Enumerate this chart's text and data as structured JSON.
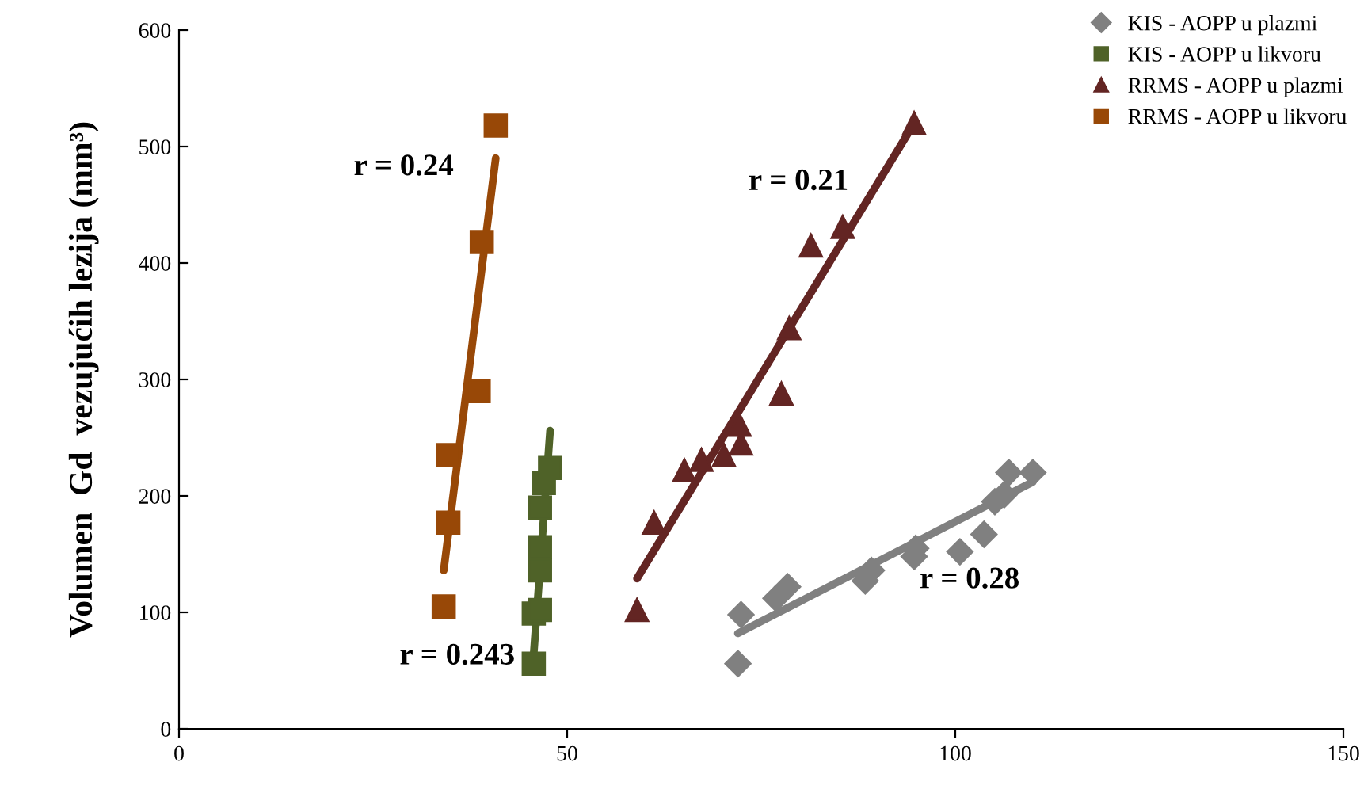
{
  "chart_data": {
    "type": "scatter",
    "ylabel": "Volumen  Gd  vezujućih lezija (mm³)",
    "xlim": [
      0,
      150
    ],
    "ylim": [
      0,
      600
    ],
    "xticks": [
      0,
      50,
      100,
      150
    ],
    "yticks": [
      0,
      100,
      200,
      300,
      400,
      500,
      600
    ],
    "grid": false,
    "legend": "top right",
    "series": [
      {
        "name": "KIS - AOPP u plazmi",
        "color": "#808080",
        "marker": "diamond",
        "x": [
          72.0,
          72.4,
          76.9,
          78.4,
          88.4,
          89.2,
          94.7,
          94.9,
          100.6,
          103.7,
          105.1,
          106.3,
          106.9,
          110
        ],
        "values": [
          56,
          98,
          112,
          122,
          127,
          136,
          148,
          155,
          152,
          167,
          195,
          201,
          220,
          220
        ]
      },
      {
        "name": "KIS - AOPP u likvoru",
        "color": "#4f6228",
        "marker": "square",
        "x": [
          45.7,
          45.7,
          46.5,
          46.5,
          46.5,
          46.5,
          47.0,
          47.8
        ],
        "values": [
          56,
          99,
          102,
          136,
          156,
          190,
          211,
          224
        ]
      },
      {
        "name": "RRMS - AOPP u plazmi",
        "color": "#632523",
        "marker": "triangle",
        "x": [
          59.0,
          61.2,
          65.1,
          67.3,
          70.2,
          72.4,
          72.2,
          77.6,
          78.6,
          81.4,
          85.5,
          94.7
        ],
        "values": [
          102,
          177,
          222,
          231,
          235,
          245,
          261,
          288,
          344,
          415,
          431,
          520
        ]
      },
      {
        "name": "RRMS - AOPP u likvoru",
        "color": "#984807",
        "marker": "square",
        "x": [
          34.1,
          34.7,
          34.7,
          38.6,
          39.0,
          40.8
        ],
        "values": [
          105,
          177,
          235,
          290,
          418,
          518
        ]
      },
      {
        "type": "line",
        "color": "#808080",
        "x": [
          72,
          110
        ],
        "values": [
          82,
          212
        ]
      },
      {
        "type": "line",
        "color": "#4f6228",
        "x": [
          45.7,
          47.8
        ],
        "values": [
          65,
          256
        ]
      },
      {
        "type": "line",
        "color": "#632523",
        "x": [
          59.0,
          94.7
        ],
        "values": [
          129,
          520
        ]
      },
      {
        "type": "line",
        "color": "#984807",
        "x": [
          34.1,
          40.8
        ],
        "values": [
          136,
          490
        ]
      }
    ],
    "annotations": [
      "r = 0.24",
      "r = 0.243",
      "r = 0.21",
      "r = 0.28"
    ]
  }
}
